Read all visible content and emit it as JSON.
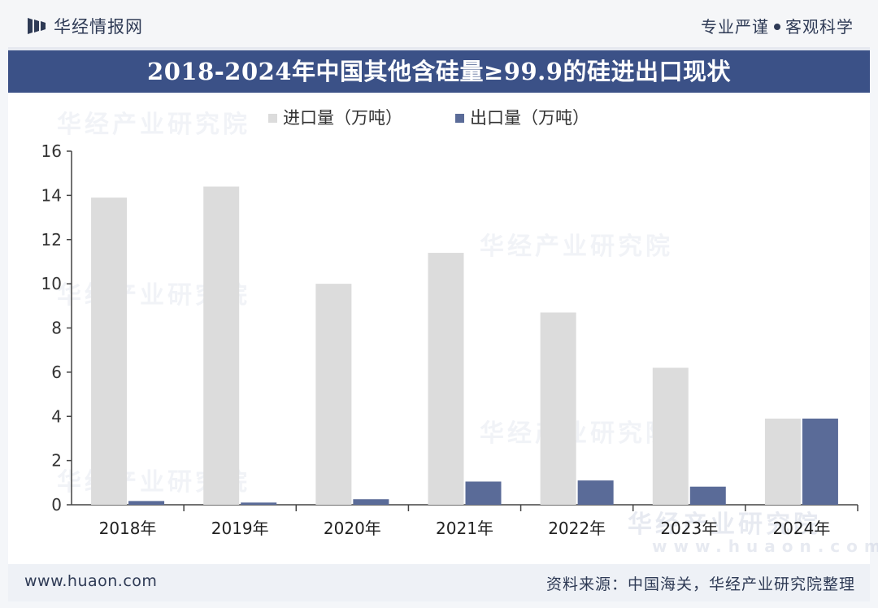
{
  "header": {
    "brand": "华经情报网",
    "tagline_left": "专业严谨",
    "tagline_right": "客观科学"
  },
  "title": "2018-2024年中国其他含硅量≥99.9的硅进出口现状",
  "footer": {
    "url": "www.huaon.com",
    "source": "资料来源：中国海关，华经产业研究院整理"
  },
  "watermarks": {
    "cn": "华经产业研究院",
    "url": "www.huaon.com"
  },
  "colors": {
    "title_bar": "#3b5187",
    "import": "#dcdcdc",
    "export": "#5a6b98",
    "text": "#2e3a55"
  },
  "chart_data": {
    "type": "bar",
    "categories": [
      "2018年",
      "2019年",
      "2020年",
      "2021年",
      "2022年",
      "2023年",
      "2024年"
    ],
    "series": [
      {
        "name": "进口量（万吨）",
        "values": [
          13.9,
          14.4,
          10.0,
          11.4,
          8.7,
          6.2,
          3.9
        ]
      },
      {
        "name": "出口量（万吨）",
        "values": [
          0.17,
          0.1,
          0.25,
          1.05,
          1.1,
          0.82,
          3.9
        ]
      }
    ],
    "ylim": [
      0,
      16
    ],
    "yticks": [
      "0",
      "2",
      "4",
      "6",
      "8",
      "10",
      "12",
      "14",
      "16"
    ],
    "legend_position": "top-left",
    "grid": false
  }
}
